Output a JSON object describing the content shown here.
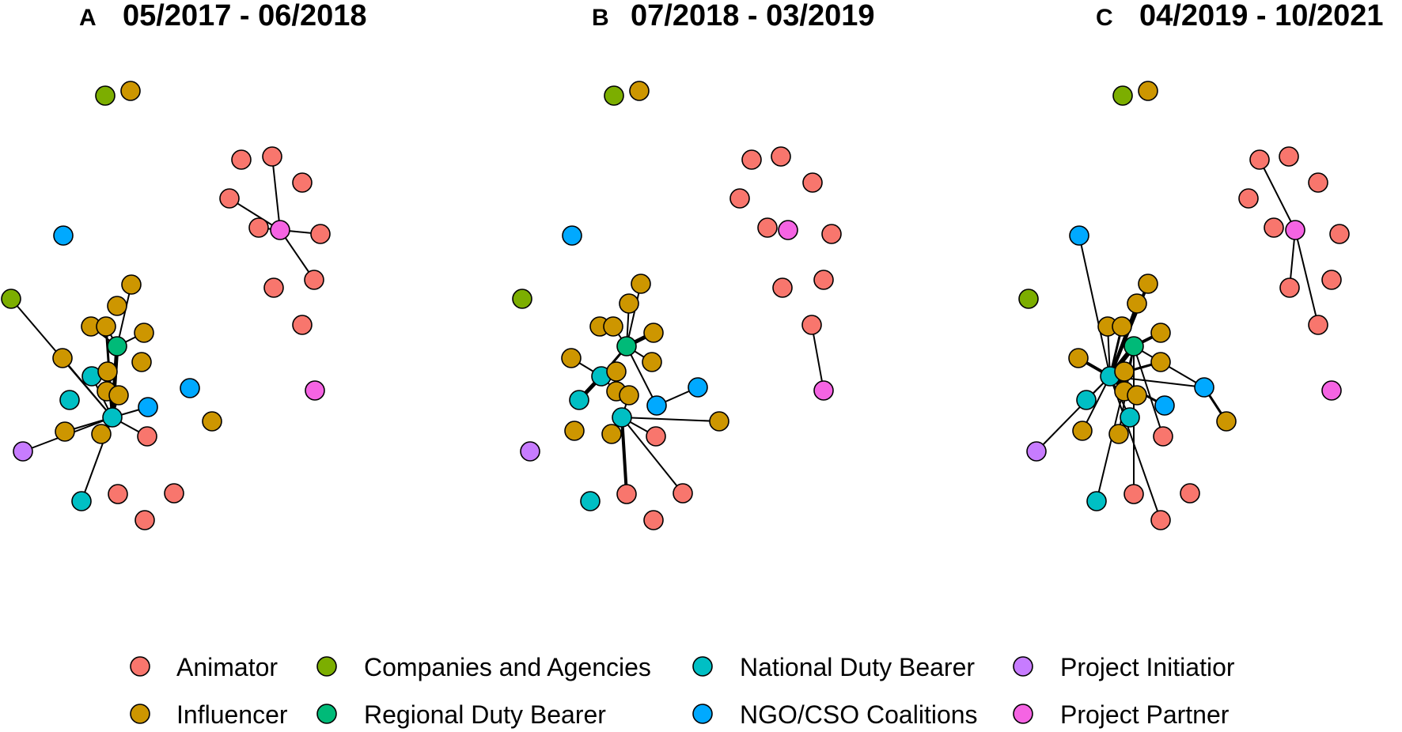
{
  "panels": [
    {
      "letter": "A",
      "title": "05/2017 - 06/2018"
    },
    {
      "letter": "B",
      "title": "07/2018 - 03/2019"
    },
    {
      "letter": "C",
      "title": "04/2019 - 10/2021"
    }
  ],
  "legend": [
    {
      "key": "animator",
      "label": "Animator",
      "color": "#F8766D"
    },
    {
      "key": "companies",
      "label": "Companies and Agencies",
      "color": "#7CAE00"
    },
    {
      "key": "national",
      "label": "National Duty Bearer",
      "color": "#00BFC4"
    },
    {
      "key": "initiator",
      "label": "Project Initiatior",
      "color": "#C77CFF"
    },
    {
      "key": "influencer",
      "label": "Influencer",
      "color": "#CD9600"
    },
    {
      "key": "regional",
      "label": "Regional Duty Bearer",
      "color": "#00BA78"
    },
    {
      "key": "ngo",
      "label": "NGO/CSO Coalitions",
      "color": "#00A9FF"
    },
    {
      "key": "partner",
      "label": "Project Partner",
      "color": "#F564E3"
    }
  ]
}
